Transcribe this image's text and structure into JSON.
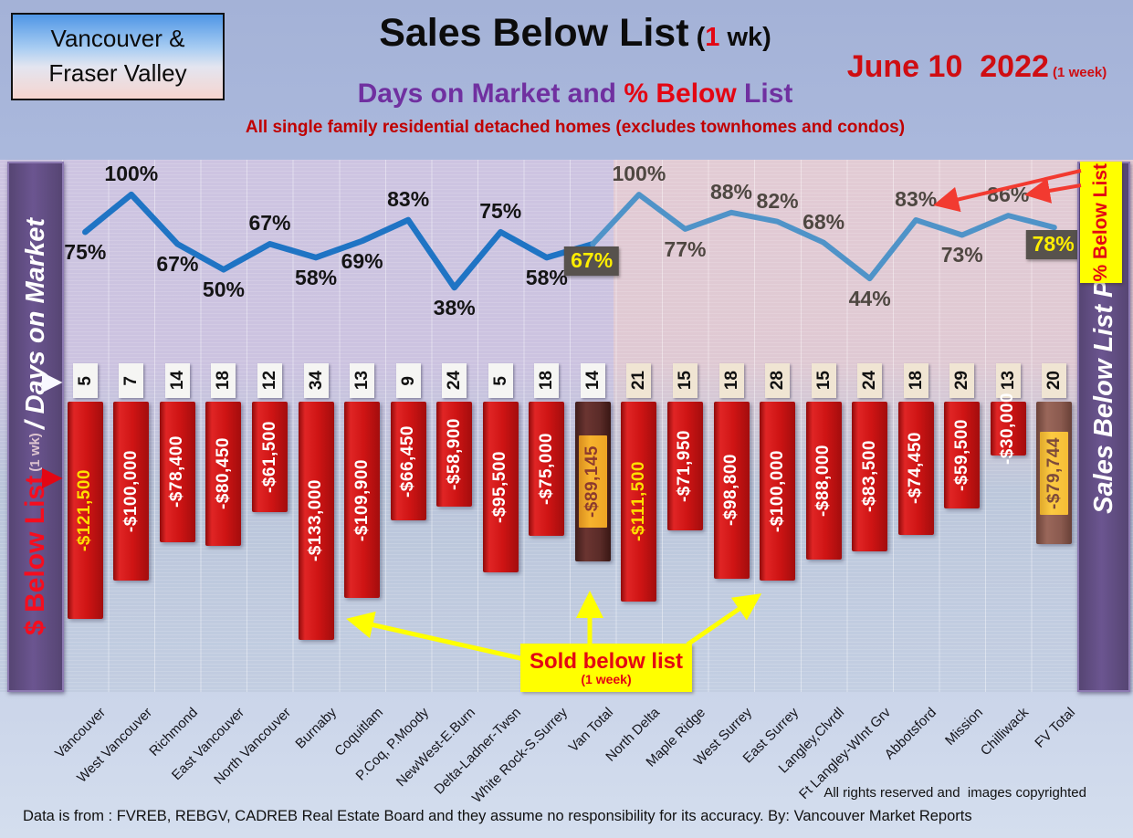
{
  "header": {
    "region_box": {
      "line1": "Vancouver &",
      "line2": "Fraser Valley"
    },
    "title": {
      "main": "Sales Below List",
      "paren_open": " (",
      "paren_num": "1",
      "paren_rest": " wk)"
    },
    "date": {
      "main": "June 10  2022",
      "small": " (1 week)"
    },
    "subtitle": {
      "part1": "Days on Market and ",
      "part2": "% Below",
      "part3": " List"
    },
    "tagline": "All single family residential detached homes (excludes townhomes and condos)"
  },
  "left_sidebar": {
    "dollar": "$ Below List",
    "wk": " (1 wk) ",
    "slash": "/ ",
    "days": "Days on Market"
  },
  "right_sidebar": {
    "label": "Sales Below List Price",
    "callout": "% Below List"
  },
  "sold_callout": {
    "line1": "Sold below list",
    "line2": "(1 week)"
  },
  "footer": {
    "rights": "All rights reserved and  images copyrighted",
    "source": "Data is from : FVREB, REBGV, CADREB Real Estate Board and they assume no responsibility for its accuracy. By: Vancouver Market Reports"
  },
  "colors": {
    "line_left": "#1f74c4",
    "line_right": "#4f93c8",
    "bar_red": "#c00000",
    "bar_van_total_brown": "#5a2b28",
    "bar_fv_total_brown": "#8a5a4f",
    "label_orange": "#f7b32e",
    "label_amber": "#fcca42",
    "highlight_box": "#57524d",
    "highlight_text": "#ffee00",
    "accent_red": "#e30613",
    "accent_purple": "#7030a0",
    "sidebar_purple": "#5c4a78",
    "callout_yellow": "#ffff00"
  },
  "chart_data": {
    "type": "line+bar",
    "title": "Sales Below List (1 wk) — Days on Market and % Below List",
    "categories": [
      "Vancouver",
      "West Vancouver",
      "Richmond",
      "East Vancouver",
      "North Vancouver",
      "Burnaby",
      "Coquitlam",
      "P.Coq, P.Moody",
      "NewWest-E.Burn",
      "Delta-Ladner-Twsn",
      "White Rock-S.Surrey",
      "Van Total",
      "North Delta",
      "Maple Ridge",
      "West Surrey",
      "East Surrey",
      "Langley,Clvrdl",
      "Ft Langley-WInt Grv",
      "Abbotsford",
      "Mission",
      "Chilliwack",
      "FV Total"
    ],
    "series": [
      {
        "name": "% Below List",
        "type": "line",
        "values": [
          75,
          100,
          67,
          50,
          67,
          58,
          69,
          83,
          38,
          75,
          58,
          67,
          100,
          77,
          88,
          82,
          68,
          44,
          83,
          73,
          86,
          78
        ],
        "label_placement": [
          "below",
          "above",
          "below",
          "below",
          "above",
          "below",
          "below",
          "above",
          "below",
          "above",
          "below",
          "box",
          "above",
          "below",
          "above",
          "above",
          "above",
          "below",
          "above",
          "below",
          "above",
          "box"
        ]
      },
      {
        "name": "Days on Market",
        "type": "label-row",
        "values": [
          5,
          7,
          14,
          18,
          12,
          34,
          13,
          9,
          24,
          5,
          18,
          14,
          21,
          15,
          18,
          28,
          15,
          24,
          18,
          29,
          13,
          20
        ]
      },
      {
        "name": "$ Below List",
        "type": "bar",
        "values": [
          -121500,
          -100000,
          -78400,
          -80450,
          -61500,
          -133000,
          -109900,
          -66450,
          -58900,
          -95500,
          -75000,
          -89145,
          -111500,
          -71950,
          -98800,
          -100000,
          -88000,
          -83500,
          -74450,
          -59500,
          -30000,
          -79744
        ],
        "labels": [
          "-$121,500",
          "-$100,000",
          "-$78,400",
          "-$80,450",
          "-$61,500",
          "-$133,000",
          "-$109,900",
          "-$66,450",
          "-$58,900",
          "-$95,500",
          "-$75,000",
          "-$89,145",
          "-$111,500",
          "-$71,950",
          "-$98,800",
          "-$100,000",
          "-$88,000",
          "-$83,500",
          "-$74,450",
          "-$59,500",
          "-$30,000",
          "-$79,744"
        ]
      }
    ],
    "highlight_indices": [
      11,
      21
    ],
    "yellow_value_label_indices": [
      0,
      12
    ],
    "group_split_index": 12,
    "legend_position": "none",
    "grid": "faint"
  }
}
